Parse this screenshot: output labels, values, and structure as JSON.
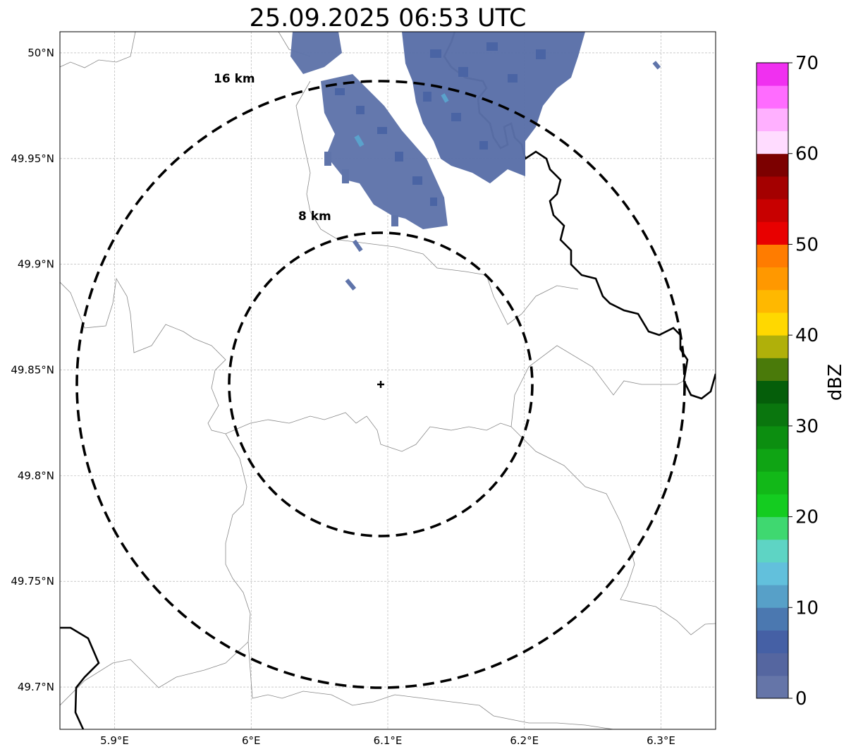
{
  "title": "25.09.2025 06:53 UTC",
  "chart_data": {
    "type": "radar-map",
    "title": "25.09.2025 06:53 UTC",
    "lon_range": [
      5.86,
      6.34
    ],
    "lat_range": [
      49.68,
      50.01
    ],
    "x_ticks": [
      {
        "value": 5.9,
        "label": "5.9°E"
      },
      {
        "value": 6.0,
        "label": "6°E"
      },
      {
        "value": 6.1,
        "label": "6.1°E"
      },
      {
        "value": 6.2,
        "label": "6.2°E"
      },
      {
        "value": 6.3,
        "label": "6.3°E"
      }
    ],
    "y_ticks": [
      {
        "value": 50.0,
        "label": "50°N"
      },
      {
        "value": 49.95,
        "label": "49.95°N"
      },
      {
        "value": 49.9,
        "label": "49.9°N"
      },
      {
        "value": 49.85,
        "label": "49.85°N"
      },
      {
        "value": 49.8,
        "label": "49.8°N"
      },
      {
        "value": 49.75,
        "label": "49.75°N"
      },
      {
        "value": 49.7,
        "label": "49.7°N"
      }
    ],
    "radar_site": {
      "lon": 6.096,
      "lat": 49.843
    },
    "range_rings": [
      {
        "radius_km": 8,
        "label": "8 km",
        "lat_radius": 0.0717,
        "lon_radius": 0.1113
      },
      {
        "radius_km": 16,
        "label": "16 km",
        "lat_radius": 0.1435,
        "lon_radius": 0.2226
      }
    ],
    "gridlines": true,
    "colorbar": {
      "label": "dBZ",
      "min": 0,
      "max": 70,
      "ticks": [
        0,
        10,
        20,
        30,
        40,
        50,
        60,
        70
      ],
      "levels": [
        {
          "from": 0,
          "to": 2.5,
          "color": "#6575a8"
        },
        {
          "from": 2.5,
          "to": 5,
          "color": "#5566a0"
        },
        {
          "from": 5,
          "to": 7.5,
          "color": "#4560a5"
        },
        {
          "from": 7.5,
          "to": 10,
          "color": "#4b78b0"
        },
        {
          "from": 10,
          "to": 12.5,
          "color": "#57a0c8"
        },
        {
          "from": 12.5,
          "to": 15,
          "color": "#62c0dc"
        },
        {
          "from": 15,
          "to": 17.5,
          "color": "#5ed4c4"
        },
        {
          "from": 17.5,
          "to": 20,
          "color": "#3fd870"
        },
        {
          "from": 20,
          "to": 22.5,
          "color": "#14cc20"
        },
        {
          "from": 22.5,
          "to": 25,
          "color": "#12b818"
        },
        {
          "from": 25,
          "to": 27.5,
          "color": "#0fa414"
        },
        {
          "from": 27.5,
          "to": 30,
          "color": "#0c8e10"
        },
        {
          "from": 30,
          "to": 32.5,
          "color": "#0a760e"
        },
        {
          "from": 32.5,
          "to": 35,
          "color": "#055e0a"
        },
        {
          "from": 35,
          "to": 37.5,
          "color": "#4a7a0a"
        },
        {
          "from": 37.5,
          "to": 40,
          "color": "#b0b00a"
        },
        {
          "from": 40,
          "to": 42.5,
          "color": "#ffd800"
        },
        {
          "from": 42.5,
          "to": 45,
          "color": "#ffb800"
        },
        {
          "from": 45,
          "to": 47.5,
          "color": "#ff9800"
        },
        {
          "from": 47.5,
          "to": 50,
          "color": "#ff7c00"
        },
        {
          "from": 50,
          "to": 52.5,
          "color": "#e80000"
        },
        {
          "from": 52.5,
          "to": 55,
          "color": "#c80000"
        },
        {
          "from": 55,
          "to": 57.5,
          "color": "#a40000"
        },
        {
          "from": 57.5,
          "to": 60,
          "color": "#7c0000"
        },
        {
          "from": 60,
          "to": 62.5,
          "color": "#ffdcff"
        },
        {
          "from": 62.5,
          "to": 65,
          "color": "#ffb0ff"
        },
        {
          "from": 65,
          "to": 67.5,
          "color": "#ff6cff"
        },
        {
          "from": 67.5,
          "to": 70,
          "color": "#f030f0"
        }
      ]
    },
    "echo_cells": [
      {
        "lon1": 6.02,
        "lat1": 49.99,
        "lon2": 6.06,
        "lat2": 50.01,
        "dbz": 4
      },
      {
        "lon1": 6.03,
        "lat1": 49.95,
        "lon2": 6.12,
        "lat2": 49.99,
        "dbz": 5
      },
      {
        "lon1": 6.08,
        "lat1": 49.93,
        "lon2": 6.14,
        "lat2": 49.96,
        "dbz": 3
      },
      {
        "lon1": 6.09,
        "lat1": 49.915,
        "lon2": 6.12,
        "lat2": 49.93,
        "dbz": 2
      },
      {
        "lon1": 6.12,
        "lat1": 49.97,
        "lon2": 6.17,
        "lat2": 50.01,
        "dbz": 6
      },
      {
        "lon1": 6.13,
        "lat1": 49.95,
        "lon2": 6.21,
        "lat2": 49.99,
        "dbz": 5
      },
      {
        "lon1": 6.16,
        "lat1": 49.97,
        "lon2": 6.24,
        "lat2": 50.01,
        "dbz": 4
      },
      {
        "lon1": 6.17,
        "lat1": 49.94,
        "lon2": 6.2,
        "lat2": 49.96,
        "dbz": 3
      },
      {
        "lon1": 6.075,
        "lat1": 49.905,
        "lon2": 6.08,
        "lat2": 49.911,
        "dbz": 2
      },
      {
        "lon1": 6.068,
        "lat1": 49.888,
        "lon2": 6.074,
        "lat2": 49.894,
        "dbz": 2
      },
      {
        "lon1": 6.296,
        "lat1": 49.991,
        "lon2": 6.3,
        "lat2": 49.995,
        "dbz": 2
      },
      {
        "lon1": 6.074,
        "lat1": 49.954,
        "lon2": 6.08,
        "lat2": 49.962,
        "dbz": 12
      },
      {
        "lon1": 6.14,
        "lat1": 49.978,
        "lon2": 6.145,
        "lat2": 49.984,
        "dbz": 11
      }
    ]
  }
}
